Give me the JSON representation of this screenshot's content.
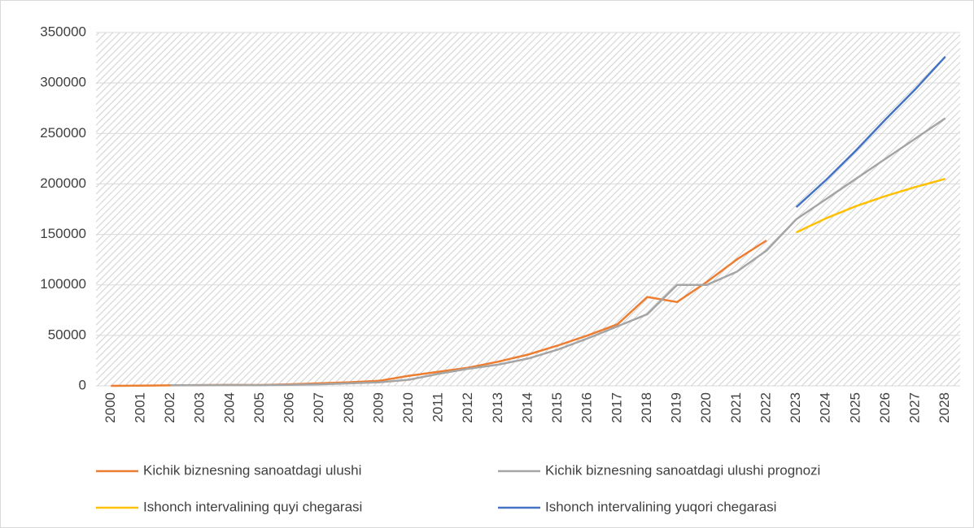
{
  "chart_data": {
    "type": "line",
    "categories": [
      "2000",
      "2001",
      "2002",
      "2003",
      "2004",
      "2005",
      "2006",
      "2007",
      "2008",
      "2009",
      "2010",
      "2011",
      "2012",
      "2013",
      "2014",
      "2015",
      "2016",
      "2017",
      "2018",
      "2019",
      "2020",
      "2021",
      "2022",
      "2023",
      "2024",
      "2025",
      "2026",
      "2027",
      "2028"
    ],
    "series": [
      {
        "name": "Kichik biznesning sanoatdagi ulushi",
        "color": "#ed7d31",
        "values": [
          0,
          200,
          500,
          700,
          900,
          800,
          1500,
          2500,
          3500,
          5000,
          10000,
          14000,
          18000,
          24000,
          31000,
          40000,
          50000,
          61000,
          88000,
          83000,
          103000,
          125000,
          144000,
          null,
          null,
          null,
          null,
          null,
          null
        ]
      },
      {
        "name": "Kichik biznesning sanoatdagi ulushi prognozi",
        "color": "#a5a5a5",
        "values": [
          null,
          null,
          600,
          700,
          800,
          700,
          1000,
          1500,
          2500,
          3500,
          6000,
          12000,
          17000,
          21000,
          27000,
          36000,
          47000,
          59000,
          71000,
          100000,
          100000,
          113000,
          134000,
          165000,
          185000,
          205000,
          225000,
          245000,
          265000
        ]
      },
      {
        "name": "Ishonch intervalining quyi chegarasi",
        "color": "#ffc000",
        "values": [
          null,
          null,
          null,
          null,
          null,
          null,
          null,
          null,
          null,
          null,
          null,
          null,
          null,
          null,
          null,
          null,
          null,
          null,
          null,
          null,
          null,
          null,
          null,
          152000,
          166000,
          178000,
          188000,
          197000,
          205000
        ]
      },
      {
        "name": "Ishonch intervalining yuqori chegarasi",
        "color": "#4472c4",
        "values": [
          null,
          null,
          null,
          null,
          null,
          null,
          null,
          null,
          null,
          null,
          null,
          null,
          null,
          null,
          null,
          null,
          null,
          null,
          null,
          null,
          null,
          null,
          null,
          177000,
          204000,
          233000,
          264000,
          294000,
          326000
        ]
      }
    ],
    "ylim": [
      0,
      350000
    ],
    "yticks": [
      0,
      50000,
      100000,
      150000,
      200000,
      250000,
      300000,
      350000
    ],
    "grid": true
  }
}
